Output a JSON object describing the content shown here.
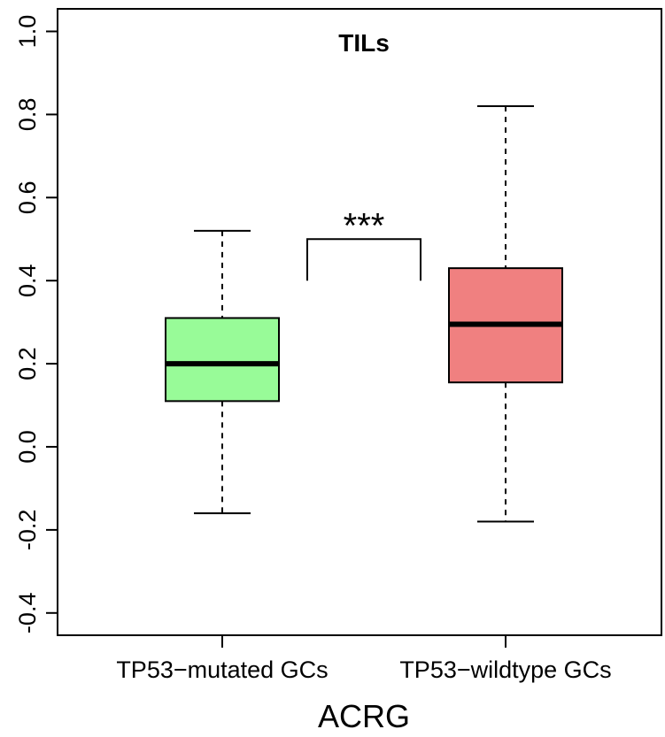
{
  "chart_data": {
    "type": "boxplot",
    "title": "TILs",
    "xlabel": "ACRG",
    "ylabel": "",
    "ylim": [
      -0.45,
      1.0
    ],
    "yticks": [
      "-0.4",
      "-0.2",
      "0.0",
      "0.2",
      "0.4",
      "0.6",
      "0.8",
      "1.0"
    ],
    "categories": [
      "TP53−mutated GCs",
      "TP53−wildtype GCs"
    ],
    "boxes": [
      {
        "category": "TP53−mutated GCs",
        "whisker_low": -0.16,
        "q1": 0.11,
        "median": 0.2,
        "q3": 0.31,
        "whisker_high": 0.52,
        "color": "#98fb98"
      },
      {
        "category": "TP53−wildtype GCs",
        "whisker_low": -0.18,
        "q1": 0.155,
        "median": 0.295,
        "q3": 0.43,
        "whisker_high": 0.82,
        "color": "#f08080"
      }
    ],
    "significance": {
      "label": "***",
      "bracket_low": 0.4,
      "bracket_high": 0.5
    },
    "grid": false,
    "legend": "none"
  }
}
